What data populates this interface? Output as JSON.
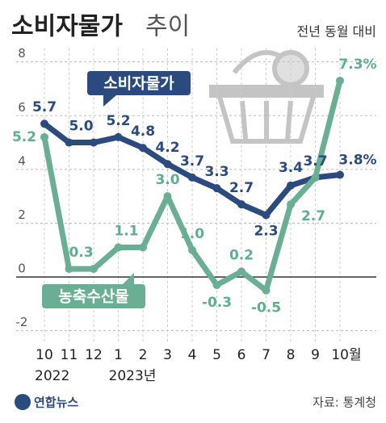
{
  "title": "소비자물가",
  "title_light": "추이",
  "subtitle": "전년 동월 대비",
  "source": "자료: 통계청",
  "logo": "연합뉴스",
  "chart_data": {
    "type": "line",
    "categories": [
      "10",
      "11",
      "12",
      "1",
      "2",
      "3",
      "4",
      "5",
      "6",
      "7",
      "8",
      "9",
      "10월"
    ],
    "x_sublabels": [
      "2022",
      null,
      null,
      "2023년",
      null,
      null,
      null,
      null,
      null,
      null,
      null,
      null,
      null
    ],
    "series": [
      {
        "name": "소비자물가",
        "color": "#2b4a7e",
        "values": [
          5.7,
          5.0,
          5.0,
          5.2,
          4.8,
          4.2,
          3.7,
          3.3,
          2.7,
          2.3,
          3.4,
          3.7,
          3.8
        ],
        "value_labels": [
          "5.7",
          "5.0",
          null,
          "5.2",
          "4.8",
          "4.2",
          "3.7",
          "3.3",
          "2.7",
          "2.3",
          "3.4",
          "3.7",
          "3.8%"
        ]
      },
      {
        "name": "농축수산물",
        "color": "#6aaf94",
        "values": [
          5.2,
          0.3,
          0.3,
          1.1,
          1.1,
          3.0,
          1.0,
          -0.3,
          0.2,
          -0.5,
          2.7,
          3.7,
          7.3
        ],
        "value_labels": [
          "5.2",
          "0.3",
          null,
          "1.1",
          null,
          "3.0",
          "1.0",
          "-0.3",
          "0.2",
          "-0.5",
          "2.7",
          null,
          "7.3%"
        ]
      }
    ],
    "ylim": [
      -2.4,
      8.5
    ],
    "yticks": [
      -2,
      0,
      2,
      4,
      6,
      8
    ],
    "grid": true
  }
}
